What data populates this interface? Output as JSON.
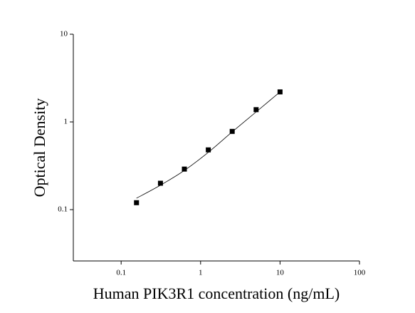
{
  "chart_data": {
    "type": "scatter",
    "xlabel": "Human PIK3R1 concentration (ng/mL)",
    "ylabel": "Optical Density",
    "x": [
      0.156,
      0.3125,
      0.625,
      1.25,
      2.5,
      5,
      10
    ],
    "series": [
      {
        "values": [
          0.12,
          0.2,
          0.29,
          0.48,
          0.78,
          1.38,
          2.2
        ],
        "color": "#000000",
        "marker": "square"
      },
      {
        "values": [
          0.135,
          0.19,
          0.28,
          0.45,
          0.77,
          1.3,
          2.2
        ],
        "color": "#000000",
        "style": "line"
      }
    ],
    "xlim": [
      0.025,
      100
    ],
    "ylim": [
      0.026,
      10
    ],
    "xticks": [
      0.1,
      1,
      10,
      100
    ],
    "yticks": [
      0.1,
      1,
      10
    ],
    "xscale": "log",
    "yscale": "log",
    "grid": false
  }
}
